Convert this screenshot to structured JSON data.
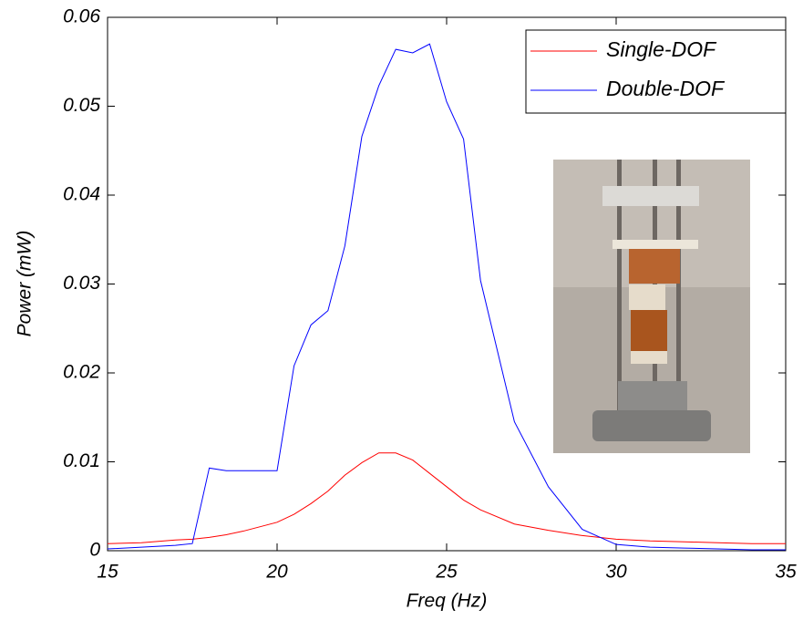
{
  "chart_data": {
    "type": "line",
    "xlabel": "Freq (Hz)",
    "ylabel": "Power (mW)",
    "x": [
      15,
      16,
      17,
      17.5,
      18,
      18.5,
      19,
      20,
      20.5,
      21,
      21.5,
      22,
      22.5,
      23,
      23.5,
      24,
      24.5,
      25,
      25.5,
      26,
      27,
      28,
      29,
      30,
      31,
      32,
      33,
      34,
      35
    ],
    "series": [
      {
        "name": "Single-DOF",
        "color": "#ff0000",
        "values": [
          0.0008,
          0.0009,
          0.0012,
          0.0013,
          0.0015,
          0.0018,
          0.0022,
          0.0032,
          0.0041,
          0.0053,
          0.0067,
          0.0085,
          0.0099,
          0.011,
          0.011,
          0.0102,
          0.0087,
          0.0072,
          0.0057,
          0.0046,
          0.003,
          0.0023,
          0.0017,
          0.0013,
          0.0011,
          0.001,
          0.0009,
          0.0008,
          0.0008
        ]
      },
      {
        "name": "Double-DOF",
        "color": "#0000ff",
        "values": [
          0.0002,
          0.0004,
          0.0006,
          0.0008,
          0.0093,
          0.009,
          0.009,
          0.009,
          0.0208,
          0.0254,
          0.027,
          0.0343,
          0.0466,
          0.0523,
          0.0564,
          0.056,
          0.057,
          0.0505,
          0.0463,
          0.0304,
          0.0145,
          0.0072,
          0.0024,
          0.0007,
          0.0004,
          0.0003,
          0.0002,
          0.0001,
          0.0001
        ]
      }
    ],
    "xlim": [
      15,
      35
    ],
    "xticks": [
      15,
      20,
      25,
      30,
      35
    ],
    "ylim": [
      0,
      0.06
    ],
    "yticks": [
      0,
      0.01,
      0.02,
      0.03,
      0.04,
      0.05,
      0.06
    ],
    "legend": "upper right",
    "grid": false
  }
}
